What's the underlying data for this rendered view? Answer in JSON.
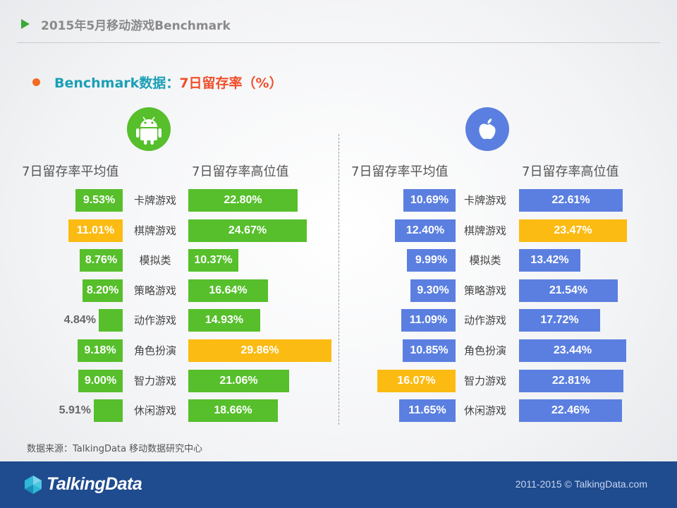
{
  "header": {
    "title": "2015年5月移动游戏Benchmark"
  },
  "subtitle": {
    "prefix": "Benchmark数据：",
    "metric": "7日留存率（%）"
  },
  "colors": {
    "android_green": "#56bf2b",
    "ios_blue": "#5b7fe0",
    "highlight": "#fbbb12",
    "footer_bg": "#1f4b8f"
  },
  "icons": {
    "android": "android-icon",
    "ios": "apple-icon"
  },
  "chart_data": {
    "type": "bar",
    "categories": [
      "卡牌游戏",
      "棋牌游戏",
      "模拟类",
      "策略游戏",
      "动作游戏",
      "角色扮演",
      "智力游戏",
      "休闲游戏"
    ],
    "unit": "%",
    "panels": [
      {
        "platform": "android",
        "avg_label": "7日留存率平均值",
        "high_label": "7日留存率高位值",
        "avg": [
          9.53,
          11.01,
          8.76,
          8.2,
          4.84,
          9.18,
          9.0,
          5.91
        ],
        "avg_text": [
          "9.53%",
          "11.01%",
          "8.76%",
          "8.20%",
          "4.84%",
          "9.18%",
          "9.00%",
          "5.91%"
        ],
        "high": [
          22.8,
          24.67,
          10.37,
          16.64,
          14.93,
          29.86,
          21.06,
          18.66
        ],
        "high_text": [
          "22.80%",
          "24.67%",
          "10.37%",
          "16.64%",
          "14.93%",
          "29.86%",
          "21.06%",
          "18.66%"
        ],
        "avg_max_index": 1,
        "high_max_index": 5
      },
      {
        "platform": "ios",
        "avg_label": "7日留存率平均值",
        "high_label": "7日留存率高位值",
        "avg": [
          10.69,
          12.4,
          9.99,
          9.3,
          11.09,
          10.85,
          16.07,
          11.65
        ],
        "avg_text": [
          "10.69%",
          "12.40%",
          "9.99%",
          "9.30%",
          "11.09%",
          "10.85%",
          "16.07%",
          "11.65%"
        ],
        "high": [
          22.61,
          23.47,
          13.42,
          21.54,
          17.72,
          23.44,
          22.81,
          22.46
        ],
        "high_text": [
          "22.61%",
          "23.47%",
          "13.42%",
          "21.54%",
          "17.72%",
          "23.44%",
          "22.81%",
          "22.46%"
        ],
        "avg_max_index": 6,
        "high_max_index": 1
      }
    ]
  },
  "source": "数据来源：TalkingData 移动数据研究中心",
  "footer": {
    "brand": "TalkingData",
    "copyright": "2011-2015 © TalkingData.com"
  }
}
